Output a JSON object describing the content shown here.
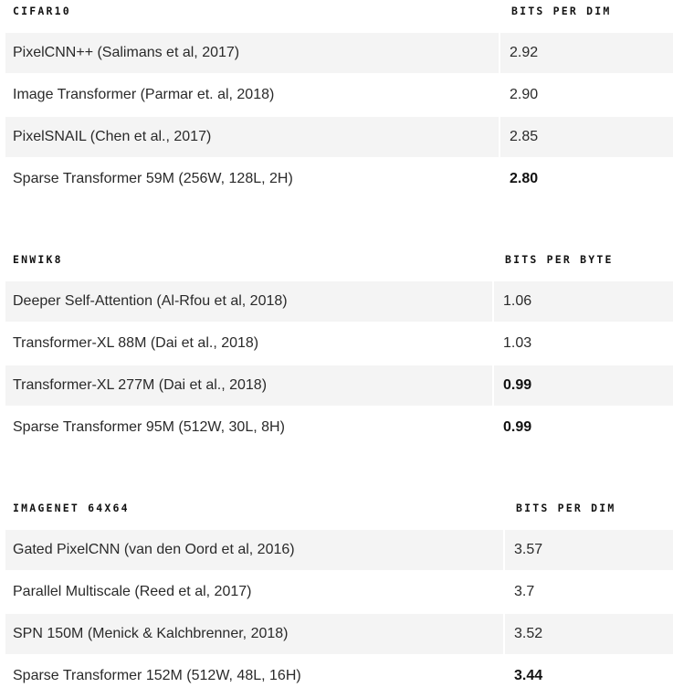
{
  "tables": [
    {
      "dataset": "CIFAR10",
      "metric": "BITS PER DIM",
      "rows": [
        {
          "model": "PixelCNN++ (Salimans et al, 2017)",
          "score": "2.92",
          "best": false
        },
        {
          "model": "Image Transformer (Parmar et. al, 2018)",
          "score": "2.90",
          "best": false
        },
        {
          "model": "PixelSNAIL (Chen et al., 2017)",
          "score": "2.85",
          "best": false
        },
        {
          "model": "Sparse Transformer 59M (256W, 128L, 2H)",
          "score": "2.80",
          "best": true
        }
      ]
    },
    {
      "dataset": "ENWIK8",
      "metric": "BITS PER BYTE",
      "rows": [
        {
          "model": "Deeper Self-Attention (Al-Rfou et al, 2018)",
          "score": "1.06",
          "best": false
        },
        {
          "model": "Transformer-XL 88M (Dai et al., 2018)",
          "score": "1.03",
          "best": false
        },
        {
          "model": "Transformer-XL 277M (Dai et al., 2018)",
          "score": "0.99",
          "best": true
        },
        {
          "model": "Sparse Transformer 95M (512W, 30L, 8H)",
          "score": "0.99",
          "best": true
        }
      ]
    },
    {
      "dataset": "IMAGENET 64X64",
      "metric": "BITS PER DIM",
      "rows": [
        {
          "model": "Gated PixelCNN (van den Oord et al, 2016)",
          "score": "3.57",
          "best": false
        },
        {
          "model": "Parallel Multiscale (Reed et al, 2017)",
          "score": "3.7",
          "best": false
        },
        {
          "model": "SPN 150M (Menick & Kalchbrenner, 2018)",
          "score": "3.52",
          "best": false
        },
        {
          "model": "Sparse Transformer 152M (512W, 48L, 16H)",
          "score": "3.44",
          "best": true
        }
      ]
    }
  ]
}
